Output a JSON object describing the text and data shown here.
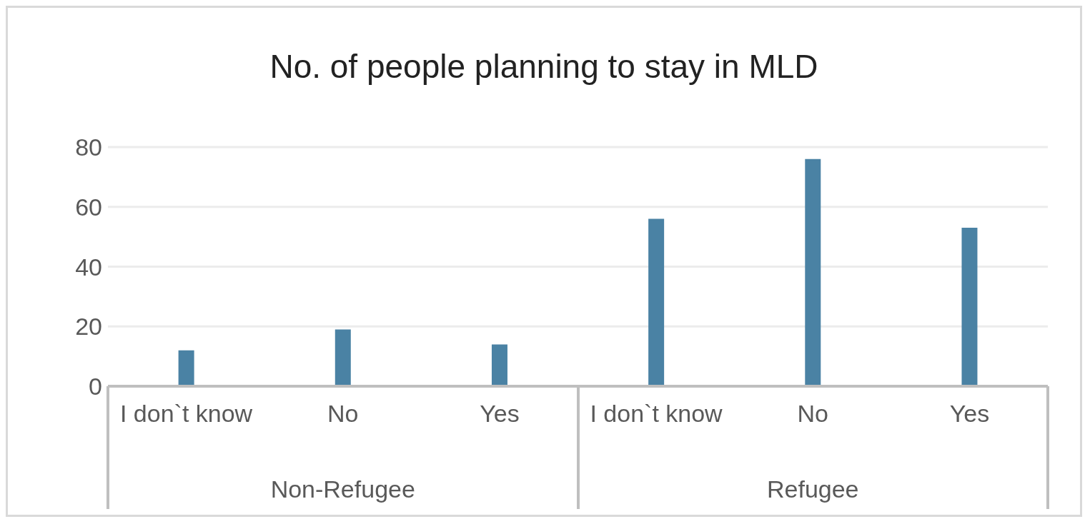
{
  "chart_data": {
    "type": "bar",
    "title": "No. of people planning to stay in MLD",
    "categories": [
      "I don`t know",
      "No",
      "Yes",
      "I don`t know",
      "No",
      "Yes"
    ],
    "values": [
      12,
      19,
      14,
      56,
      76,
      53
    ],
    "color": "#4a82a4",
    "ylim": [
      0,
      80
    ],
    "yticks": [
      0,
      20,
      40,
      60,
      80
    ],
    "grid": "y",
    "annotations": [
      "Non-Refugee",
      "Refugee"
    ]
  }
}
